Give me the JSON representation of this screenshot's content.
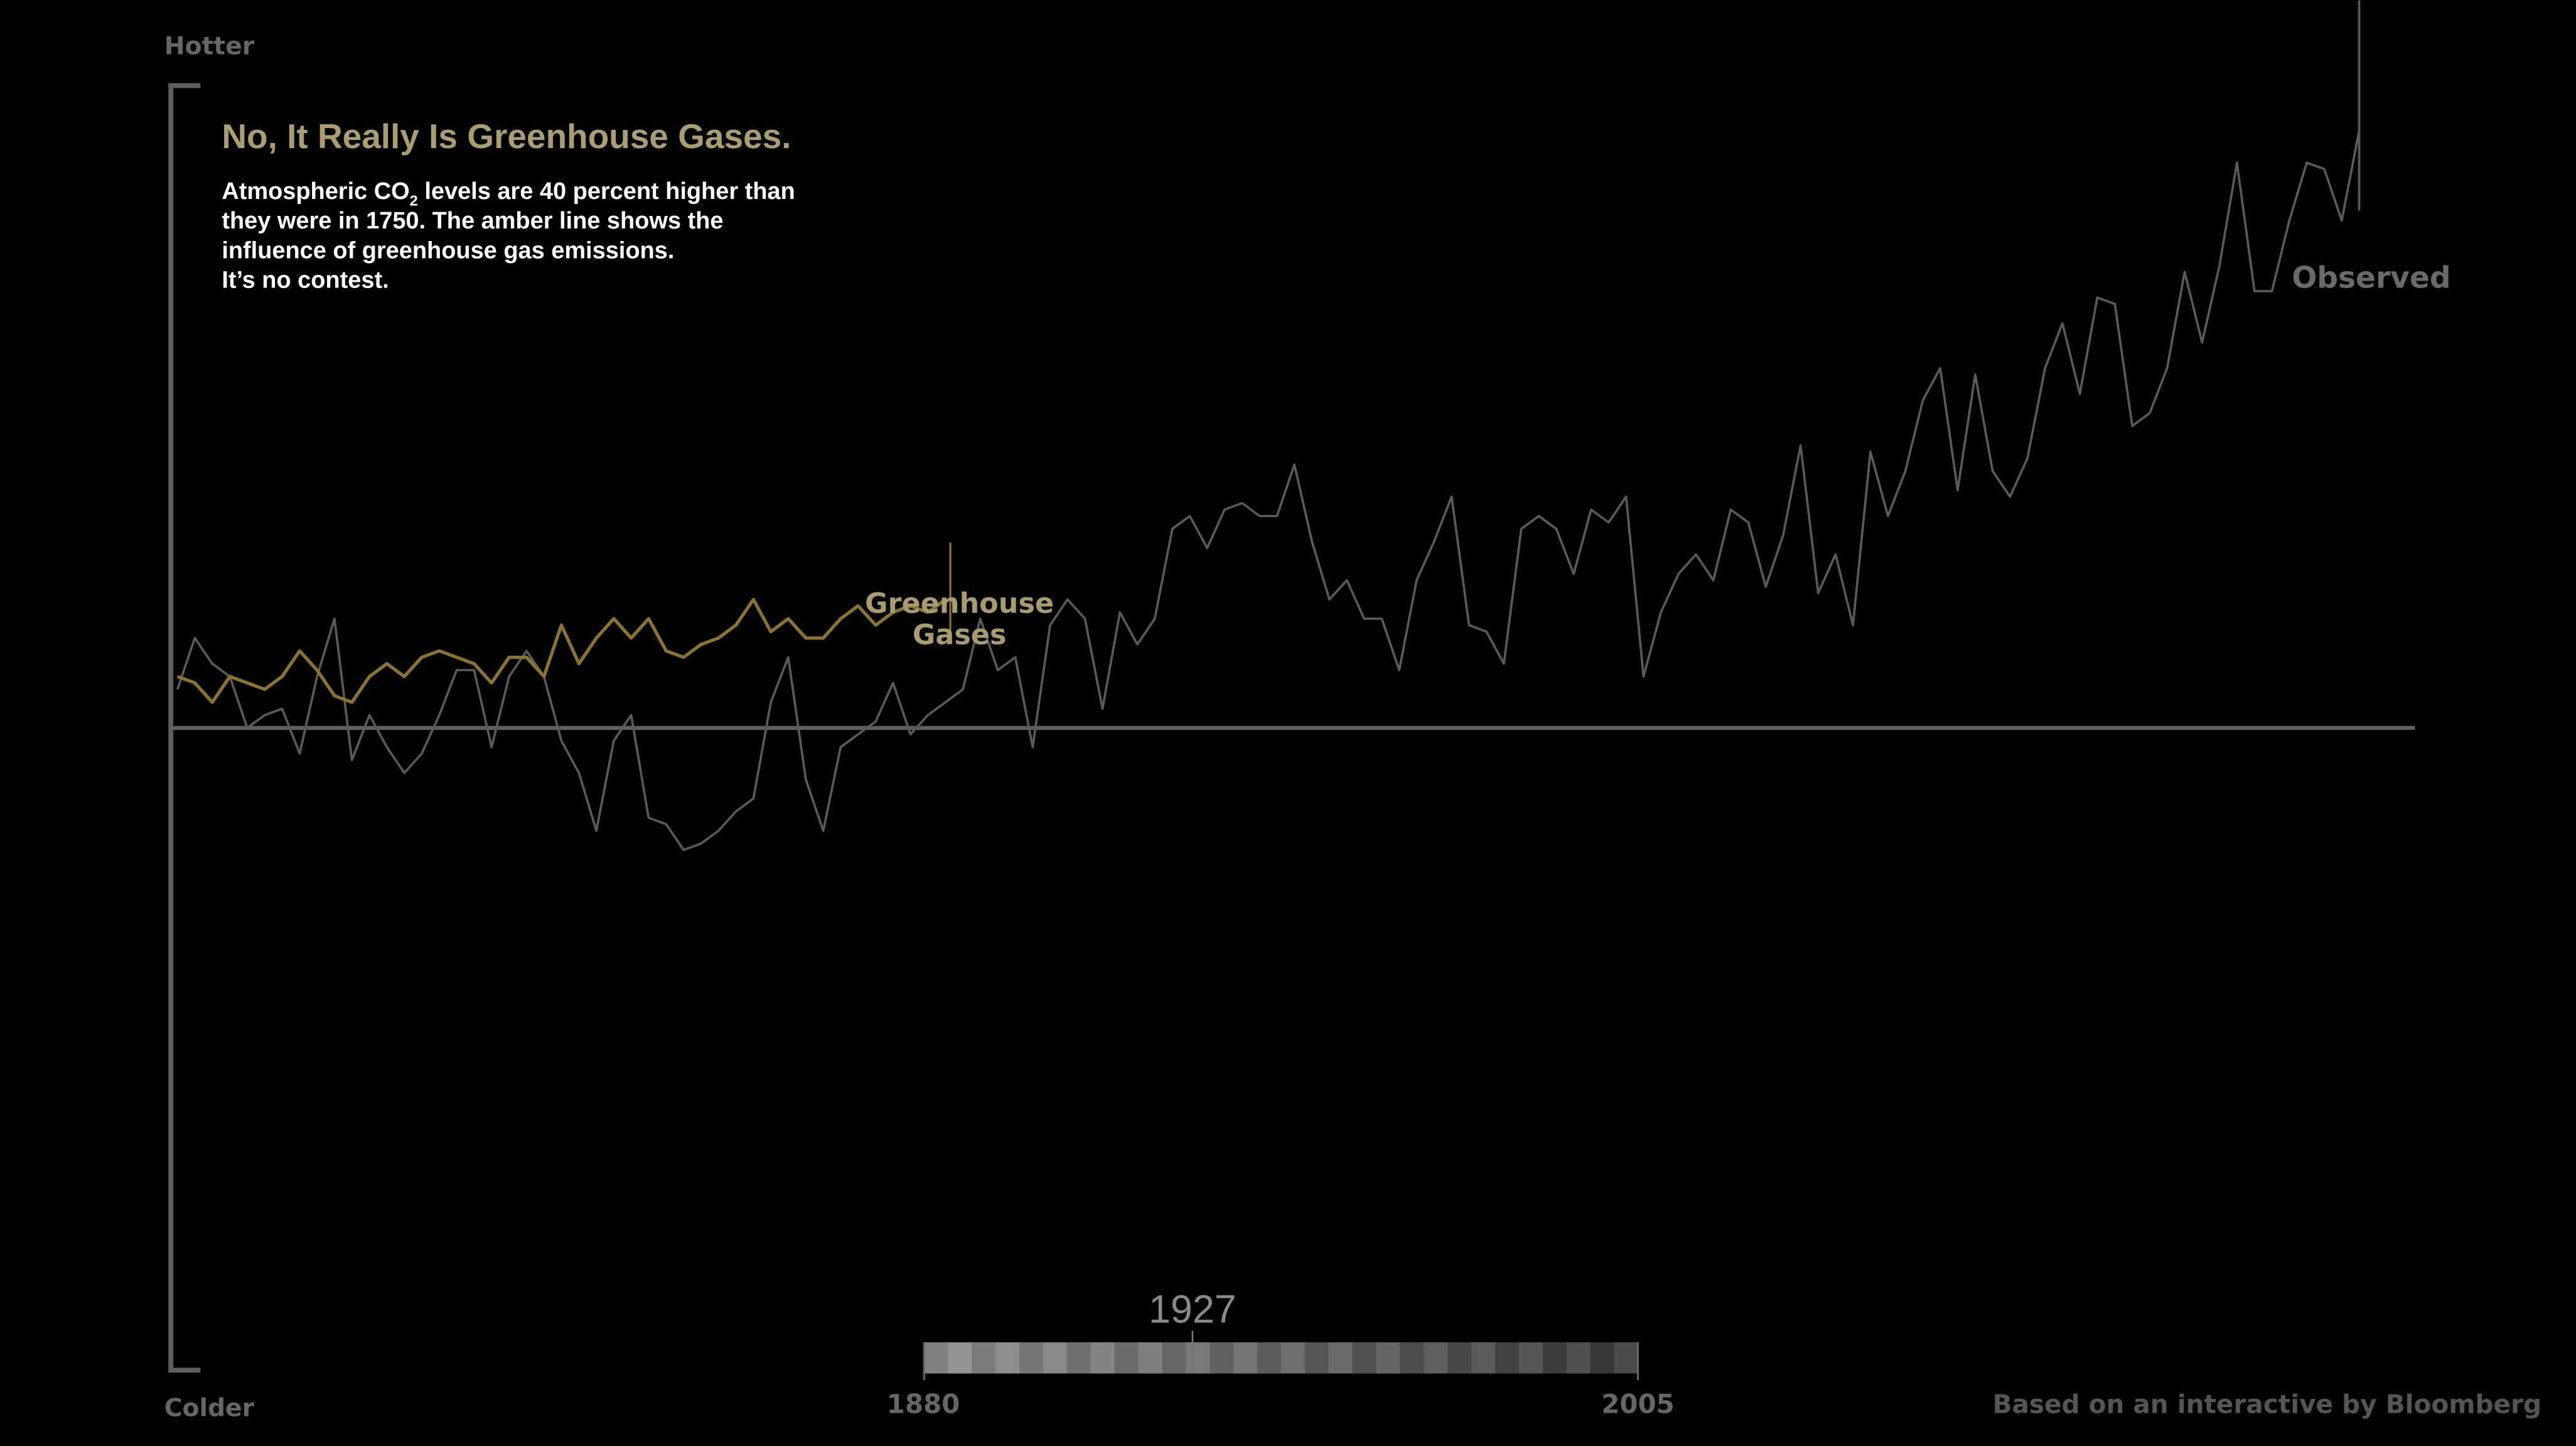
{
  "labels": {
    "hotter": "Hotter",
    "colder": "Colder",
    "title": "No, It Really Is Greenhouse Gases.",
    "body": {
      "line1_pre": "Atmospheric CO",
      "line1_sub": "2",
      "line1_post": " levels are 40 percent higher than",
      "line2": "they were in 1750.  The amber line shows the",
      "line3": "influence of greenhouse gas emissions.",
      "line4": "It’s no contest."
    },
    "greenhouse_label_1": "Greenhouse",
    "greenhouse_label_2": "Gases",
    "observed_label": "Observed",
    "credit": "Based on an interactive by Bloomberg"
  },
  "timeline": {
    "current_year": "1927",
    "start_label": "1880",
    "end_label": "2005",
    "start": 1880,
    "end": 2005,
    "value": 1927
  },
  "colors": {
    "background": "#000000",
    "axis": "#5e5e5e",
    "observed": "#5a5a5a",
    "greenhouse": "#8a7430",
    "title": "#a99d72",
    "body": "#ffffff"
  },
  "chart_data": {
    "type": "line",
    "title": "No, It Really Is Greenhouse Gases.",
    "xlim": [
      1880,
      2005
    ],
    "ylim": [
      -1,
      1
    ],
    "y_top_label": "Hotter",
    "y_bottom_label": "Colder",
    "grid": false,
    "baseline": 0,
    "series": [
      {
        "name": "Observed",
        "x_start": 1880,
        "values": [
          0.06,
          0.14,
          0.1,
          0.08,
          0.0,
          0.02,
          0.03,
          -0.04,
          0.08,
          0.17,
          -0.05,
          0.02,
          -0.03,
          -0.07,
          -0.04,
          0.02,
          0.09,
          0.09,
          -0.03,
          0.08,
          0.12,
          0.08,
          -0.02,
          -0.07,
          -0.16,
          -0.02,
          0.02,
          -0.14,
          -0.15,
          -0.19,
          -0.18,
          -0.16,
          -0.13,
          -0.11,
          0.04,
          0.11,
          -0.08,
          -0.16,
          -0.03,
          -0.01,
          0.01,
          0.07,
          -0.01,
          0.02,
          0.04,
          0.06,
          0.17,
          0.09,
          0.11,
          -0.03,
          0.16,
          0.2,
          0.17,
          0.03,
          0.18,
          0.13,
          0.17,
          0.31,
          0.33,
          0.28,
          0.34,
          0.35,
          0.33,
          0.33,
          0.41,
          0.29,
          0.2,
          0.23,
          0.17,
          0.17,
          0.09,
          0.23,
          0.29,
          0.36,
          0.16,
          0.15,
          0.1,
          0.31,
          0.33,
          0.31,
          0.24,
          0.34,
          0.32,
          0.36,
          0.08,
          0.18,
          0.24,
          0.27,
          0.23,
          0.34,
          0.32,
          0.22,
          0.3,
          0.44,
          0.21,
          0.27,
          0.16,
          0.43,
          0.33,
          0.4,
          0.51,
          0.56,
          0.37,
          0.55,
          0.4,
          0.36,
          0.42,
          0.56,
          0.63,
          0.52,
          0.67,
          0.66,
          0.47,
          0.49,
          0.56,
          0.71,
          0.6,
          0.72,
          0.88,
          0.68,
          0.68,
          0.79,
          0.88,
          0.87,
          0.79,
          0.93
        ]
      },
      {
        "name": "Greenhouse Gases",
        "x_start": 1880,
        "values": [
          0.08,
          0.07,
          0.04,
          0.08,
          0.07,
          0.06,
          0.08,
          0.12,
          0.09,
          0.05,
          0.04,
          0.08,
          0.1,
          0.08,
          0.11,
          0.12,
          0.11,
          0.1,
          0.07,
          0.11,
          0.11,
          0.08,
          0.16,
          0.1,
          0.14,
          0.17,
          0.14,
          0.17,
          0.12,
          0.11,
          0.13,
          0.14,
          0.16,
          0.2,
          0.15,
          0.17,
          0.14,
          0.14,
          0.17,
          0.19,
          0.16,
          0.18,
          0.19,
          0.18,
          0.2
        ]
      }
    ]
  }
}
